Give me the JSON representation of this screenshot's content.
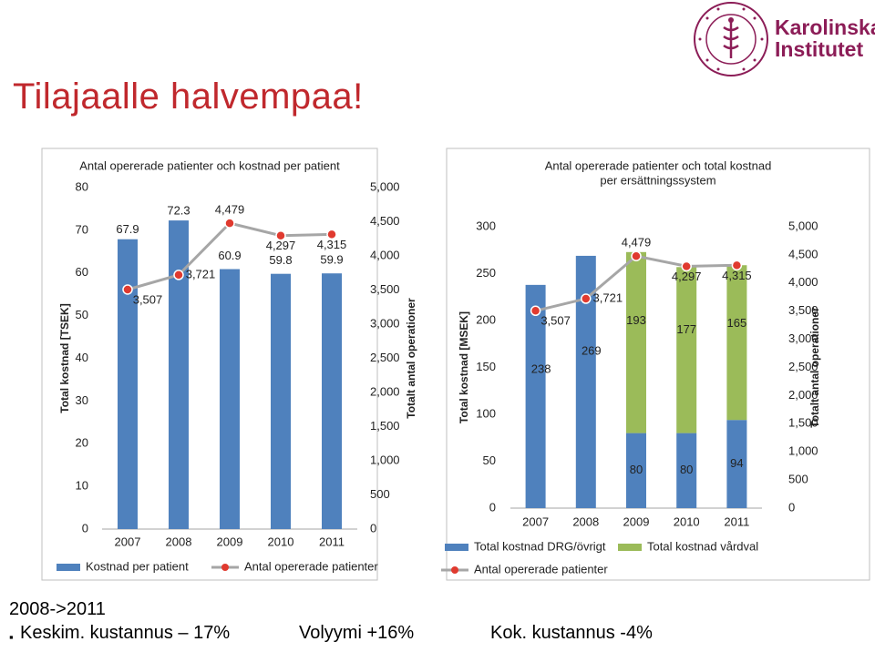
{
  "slide": {
    "title": "Tilajaalle halvempaa!",
    "brand_line1": "Karolinska",
    "brand_line2": "Institutet",
    "seal_text": "KAROLINSKA INSTITUTET ANNO 1810",
    "footer_heading": "2008->2011",
    "footer_item1": "Keskim. kustannus   – 17%",
    "footer_item2": "Volyymi +16%",
    "footer_item3": "Kok. kustannus  -4%",
    "bullet": "▪"
  },
  "colors": {
    "title": "#c0282d",
    "brand": "#8c1d57",
    "bar_blue": "#4f81bd",
    "bar_green": "#9bbb59",
    "line_gray": "#a6a6a6",
    "marker_red": "#e03a2f"
  },
  "chart_data": [
    {
      "type": "bar",
      "title": "Antal opererade patienter och kostnad per patient",
      "categories": [
        "2007",
        "2008",
        "2009",
        "2010",
        "2011"
      ],
      "ylabel": "Total kostnad [TSEK]",
      "y2label": "Totalt antal operationer",
      "ylim": [
        0,
        80
      ],
      "y2lim": [
        0,
        5000
      ],
      "yticks": [
        "0",
        "10",
        "20",
        "30",
        "40",
        "50",
        "60",
        "70",
        "80"
      ],
      "y2ticks": [
        "0",
        "500",
        "1,000",
        "1,500",
        "2,000",
        "2,500",
        "3,000",
        "3,500",
        "4,000",
        "4,500",
        "5,000"
      ],
      "series": [
        {
          "name": "Kostnad per patient",
          "kind": "bar",
          "values": [
            67.9,
            72.3,
            60.9,
            59.8,
            59.9
          ],
          "labels": [
            "67.9",
            "72.3",
            "60.9",
            "59.8",
            "59.9"
          ]
        },
        {
          "name": "Antal opererade patienter",
          "kind": "line",
          "axis": "right",
          "values": [
            3507,
            3721,
            4479,
            4297,
            4315
          ],
          "labels": [
            "3,507",
            "3,721",
            "4,479",
            "4,297",
            "4,315"
          ]
        }
      ],
      "grid": false,
      "legend": "bottom"
    },
    {
      "type": "bar",
      "title": "Antal opererade patienter och total kostnad per ersättningssystem",
      "categories": [
        "2007",
        "2008",
        "2009",
        "2010",
        "2011"
      ],
      "ylabel": "Total kostnad [MSEK]",
      "y2label": "Totalt antal operationer",
      "ylim": [
        0,
        300
      ],
      "y2lim": [
        0,
        5000
      ],
      "yticks": [
        "0",
        "50",
        "100",
        "150",
        "200",
        "250",
        "300"
      ],
      "y2ticks": [
        "0",
        "500",
        "1,000",
        "1,500",
        "2,000",
        "2,500",
        "3,000",
        "3,500",
        "4,000",
        "4,500",
        "5,000"
      ],
      "stacked": true,
      "series": [
        {
          "name": "Total kostnad DRG/övrigt",
          "kind": "bar",
          "values": [
            238,
            269,
            80,
            80,
            94
          ],
          "labels": [
            "238",
            "269",
            "80",
            "80",
            "94"
          ]
        },
        {
          "name": "Total kostnad vårdval",
          "kind": "bar",
          "values": [
            0,
            0,
            193,
            177,
            165
          ],
          "labels": [
            "",
            "",
            "193",
            "177",
            "165"
          ]
        },
        {
          "name": "Antal opererade patienter",
          "kind": "line",
          "axis": "right",
          "values": [
            3507,
            3721,
            4479,
            4297,
            4315
          ],
          "labels": [
            "3,507",
            "3,721",
            "4,479",
            "4,297",
            "4,315"
          ]
        }
      ],
      "grid": false,
      "legend": "bottom"
    }
  ]
}
